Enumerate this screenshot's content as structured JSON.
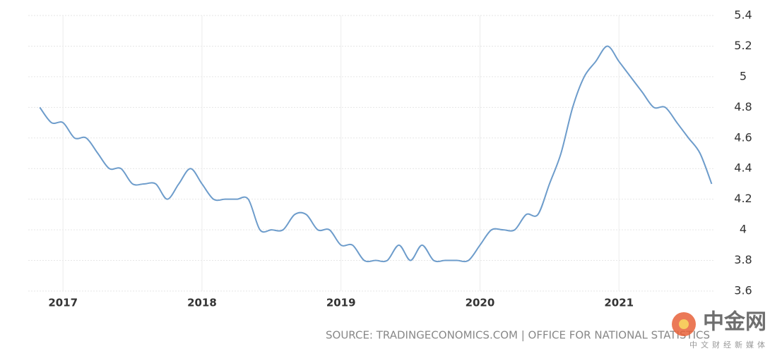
{
  "chart_data": {
    "type": "line",
    "x": [
      2016.833,
      2016.917,
      2017,
      2017.083,
      2017.167,
      2017.25,
      2017.333,
      2017.417,
      2017.5,
      2017.583,
      2017.667,
      2017.75,
      2017.833,
      2017.917,
      2018,
      2018.083,
      2018.167,
      2018.25,
      2018.333,
      2018.417,
      2018.5,
      2018.583,
      2018.667,
      2018.75,
      2018.833,
      2018.917,
      2019,
      2019.083,
      2019.167,
      2019.25,
      2019.333,
      2019.417,
      2019.5,
      2019.583,
      2019.667,
      2019.75,
      2019.833,
      2019.917,
      2020,
      2020.083,
      2020.167,
      2020.25,
      2020.333,
      2020.417,
      2020.5,
      2020.583,
      2020.667,
      2020.75,
      2020.833,
      2020.917,
      2021,
      2021.083,
      2021.167,
      2021.25,
      2021.333,
      2021.417,
      2021.5,
      2021.583,
      2021.667
    ],
    "series": [
      {
        "color": "#6d9ccb",
        "values": [
          4.8,
          4.7,
          4.7,
          4.6,
          4.6,
          4.5,
          4.4,
          4.4,
          4.3,
          4.3,
          4.3,
          4.2,
          4.3,
          4.4,
          4.3,
          4.2,
          4.2,
          4.2,
          4.2,
          4.0,
          4.0,
          4.0,
          4.1,
          4.1,
          4.0,
          4.0,
          3.9,
          3.9,
          3.8,
          3.8,
          3.8,
          3.9,
          3.8,
          3.9,
          3.8,
          3.8,
          3.8,
          3.8,
          3.9,
          4.0,
          4.0,
          4.0,
          4.1,
          4.1,
          4.3,
          4.5,
          4.8,
          5.0,
          5.1,
          5.2,
          5.1,
          5.0,
          4.9,
          4.8,
          4.8,
          4.7,
          4.6,
          4.5,
          4.3
        ]
      }
    ],
    "xlim": [
      2016.75,
      2021.68
    ],
    "xticks": [
      2017,
      2018,
      2019,
      2020,
      2021
    ],
    "ylim": [
      3.6,
      5.4
    ],
    "yticks": [
      3.6,
      3.8,
      4,
      4.2,
      4.4,
      4.6,
      4.8,
      5,
      5.2,
      5.4
    ],
    "grid": true,
    "source": "SOURCE: TRADINGECONOMICS.COM | OFFICE FOR NATIONAL STATISTICS",
    "watermark": {
      "name": "中金网",
      "slogan": "中文财经新媒体"
    }
  }
}
